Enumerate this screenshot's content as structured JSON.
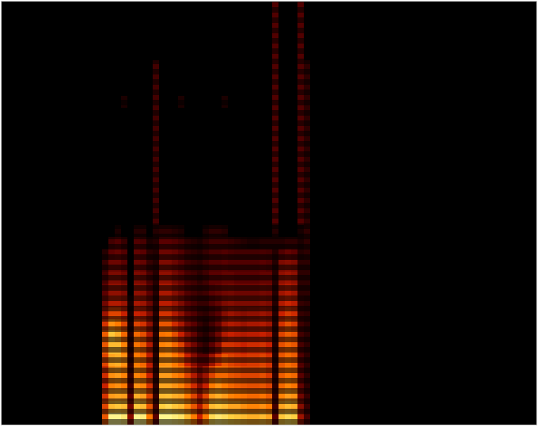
{
  "chart_data": {
    "type": "spectrogram",
    "tick_labels": false,
    "xlim": [
      0,
      85
    ],
    "ylim": [
      0,
      36
    ],
    "zlim": [
      0,
      100
    ],
    "x": [
      16,
      17,
      18,
      19,
      20,
      21,
      22,
      23,
      24,
      25,
      26,
      27,
      28,
      29,
      30,
      31,
      32,
      33,
      34,
      35,
      36,
      37,
      38,
      39,
      40,
      41,
      42,
      43,
      44,
      45,
      46,
      47,
      48
    ],
    "y": [
      0,
      1,
      2,
      3,
      4,
      5,
      6,
      7,
      8,
      9,
      10,
      11,
      12,
      13,
      14,
      15,
      16,
      17,
      18,
      19,
      20,
      21,
      22,
      23,
      24,
      25,
      26,
      27,
      28,
      29,
      30,
      31,
      32,
      33,
      34,
      35
    ],
    "z": [
      [
        60,
        98,
        98,
        95,
        30,
        98,
        96,
        70,
        20,
        98,
        98,
        96,
        94,
        85,
        70,
        45,
        70,
        92,
        95,
        93,
        90,
        88,
        85,
        82,
        82,
        85,
        80,
        20,
        88,
        92,
        90,
        35,
        15
      ],
      [
        55,
        85,
        88,
        85,
        25,
        88,
        85,
        60,
        15,
        90,
        92,
        88,
        85,
        75,
        60,
        40,
        62,
        85,
        88,
        85,
        80,
        80,
        75,
        72,
        72,
        75,
        70,
        15,
        80,
        85,
        82,
        30,
        12
      ],
      [
        50,
        78,
        80,
        78,
        20,
        82,
        78,
        55,
        12,
        85,
        86,
        82,
        80,
        70,
        55,
        35,
        55,
        78,
        82,
        78,
        72,
        70,
        68,
        65,
        65,
        68,
        62,
        12,
        72,
        78,
        75,
        25,
        12
      ],
      [
        45,
        72,
        75,
        70,
        15,
        75,
        72,
        50,
        10,
        80,
        80,
        76,
        72,
        62,
        48,
        30,
        45,
        70,
        75,
        70,
        65,
        62,
        60,
        58,
        58,
        60,
        55,
        10,
        65,
        72,
        68,
        22,
        10
      ],
      [
        48,
        75,
        78,
        72,
        12,
        72,
        68,
        45,
        10,
        78,
        78,
        72,
        68,
        55,
        40,
        25,
        35,
        55,
        65,
        65,
        60,
        58,
        55,
        55,
        55,
        58,
        52,
        10,
        62,
        68,
        65,
        20,
        10
      ],
      [
        55,
        80,
        82,
        75,
        10,
        70,
        65,
        42,
        8,
        75,
        76,
        70,
        62,
        45,
        30,
        20,
        20,
        35,
        50,
        60,
        55,
        52,
        50,
        52,
        52,
        55,
        50,
        8,
        60,
        66,
        62,
        18,
        10
      ],
      [
        60,
        85,
        85,
        72,
        8,
        68,
        62,
        40,
        8,
        72,
        74,
        65,
        55,
        35,
        25,
        15,
        10,
        20,
        30,
        50,
        50,
        48,
        45,
        48,
        48,
        50,
        45,
        8,
        58,
        64,
        60,
        16,
        10
      ],
      [
        62,
        88,
        82,
        65,
        8,
        65,
        58,
        38,
        8,
        68,
        70,
        58,
        45,
        30,
        22,
        12,
        8,
        15,
        25,
        40,
        45,
        42,
        40,
        42,
        42,
        45,
        40,
        8,
        55,
        62,
        58,
        15,
        10
      ],
      [
        50,
        75,
        70,
        55,
        6,
        55,
        50,
        32,
        8,
        60,
        60,
        48,
        38,
        25,
        20,
        12,
        8,
        15,
        22,
        35,
        40,
        38,
        35,
        38,
        38,
        40,
        36,
        8,
        50,
        58,
        52,
        14,
        10
      ],
      [
        35,
        55,
        55,
        45,
        5,
        45,
        42,
        28,
        8,
        50,
        50,
        40,
        32,
        22,
        18,
        12,
        10,
        15,
        20,
        30,
        35,
        32,
        30,
        32,
        32,
        35,
        32,
        8,
        45,
        52,
        48,
        12,
        10
      ],
      [
        25,
        40,
        40,
        35,
        5,
        38,
        35,
        24,
        8,
        42,
        42,
        35,
        28,
        20,
        16,
        12,
        12,
        18,
        22,
        28,
        30,
        28,
        28,
        28,
        28,
        30,
        28,
        8,
        40,
        46,
        42,
        12,
        10
      ],
      [
        20,
        32,
        32,
        28,
        0,
        32,
        30,
        20,
        8,
        38,
        38,
        30,
        25,
        18,
        15,
        12,
        14,
        20,
        22,
        25,
        26,
        24,
        24,
        24,
        24,
        26,
        25,
        8,
        36,
        40,
        36,
        10,
        10
      ],
      [
        15,
        28,
        28,
        24,
        0,
        28,
        26,
        16,
        8,
        32,
        32,
        26,
        22,
        16,
        14,
        10,
        14,
        20,
        20,
        22,
        22,
        20,
        20,
        20,
        20,
        22,
        22,
        8,
        32,
        35,
        32,
        10,
        10
      ],
      [
        12,
        24,
        24,
        20,
        0,
        24,
        22,
        12,
        8,
        28,
        28,
        24,
        20,
        14,
        12,
        10,
        14,
        18,
        18,
        20,
        18,
        18,
        18,
        18,
        18,
        20,
        18,
        8,
        28,
        30,
        28,
        10,
        10
      ],
      [
        8,
        20,
        22,
        18,
        0,
        22,
        20,
        10,
        8,
        24,
        24,
        22,
        18,
        12,
        10,
        8,
        12,
        16,
        16,
        18,
        16,
        15,
        15,
        15,
        15,
        16,
        15,
        8,
        18,
        22,
        20,
        8,
        10
      ],
      [
        0,
        15,
        18,
        12,
        0,
        18,
        16,
        6,
        8,
        20,
        20,
        18,
        15,
        10,
        8,
        6,
        10,
        14,
        14,
        14,
        12,
        10,
        8,
        6,
        6,
        8,
        8,
        8,
        8,
        10,
        10,
        6,
        10
      ],
      [
        0,
        0,
        6,
        0,
        0,
        8,
        8,
        0,
        8,
        10,
        10,
        8,
        6,
        0,
        0,
        0,
        6,
        10,
        10,
        8,
        0,
        0,
        0,
        0,
        0,
        0,
        0,
        8,
        0,
        0,
        0,
        5,
        10
      ],
      [
        0,
        0,
        0,
        0,
        0,
        0,
        0,
        0,
        15,
        0,
        0,
        0,
        0,
        0,
        0,
        0,
        0,
        0,
        0,
        0,
        0,
        0,
        0,
        0,
        0,
        0,
        0,
        18,
        0,
        0,
        0,
        18,
        10
      ],
      [
        0,
        0,
        0,
        0,
        0,
        0,
        0,
        0,
        15,
        0,
        0,
        0,
        0,
        0,
        0,
        0,
        0,
        0,
        0,
        0,
        0,
        0,
        0,
        0,
        0,
        0,
        0,
        18,
        0,
        0,
        0,
        18,
        10
      ],
      [
        0,
        0,
        0,
        0,
        0,
        0,
        0,
        0,
        15,
        0,
        0,
        0,
        0,
        0,
        0,
        0,
        0,
        0,
        0,
        0,
        0,
        0,
        0,
        0,
        0,
        0,
        0,
        18,
        0,
        0,
        0,
        18,
        10
      ],
      [
        0,
        0,
        0,
        0,
        0,
        0,
        0,
        0,
        15,
        0,
        0,
        0,
        0,
        0,
        0,
        0,
        0,
        0,
        0,
        0,
        0,
        0,
        0,
        0,
        0,
        0,
        0,
        18,
        0,
        0,
        0,
        18,
        10
      ],
      [
        0,
        0,
        0,
        0,
        0,
        0,
        0,
        0,
        15,
        0,
        0,
        0,
        0,
        0,
        0,
        0,
        0,
        0,
        0,
        0,
        0,
        0,
        0,
        0,
        0,
        0,
        0,
        18,
        0,
        0,
        0,
        18,
        10
      ],
      [
        0,
        0,
        0,
        0,
        0,
        0,
        0,
        0,
        15,
        0,
        0,
        0,
        0,
        0,
        0,
        0,
        0,
        0,
        0,
        0,
        0,
        0,
        0,
        0,
        0,
        0,
        0,
        18,
        0,
        0,
        0,
        18,
        10
      ],
      [
        0,
        0,
        0,
        0,
        0,
        0,
        0,
        0,
        15,
        0,
        0,
        0,
        0,
        0,
        0,
        0,
        0,
        0,
        0,
        0,
        0,
        0,
        0,
        0,
        0,
        0,
        0,
        18,
        0,
        0,
        0,
        18,
        10
      ],
      [
        0,
        0,
        0,
        0,
        0,
        0,
        0,
        0,
        15,
        0,
        0,
        0,
        0,
        0,
        0,
        0,
        0,
        0,
        0,
        0,
        0,
        0,
        0,
        0,
        0,
        0,
        0,
        18,
        0,
        0,
        0,
        18,
        10
      ],
      [
        0,
        0,
        0,
        0,
        0,
        0,
        0,
        0,
        15,
        0,
        0,
        0,
        0,
        0,
        0,
        0,
        0,
        0,
        0,
        0,
        0,
        0,
        0,
        0,
        0,
        0,
        0,
        18,
        0,
        0,
        0,
        18,
        10
      ],
      [
        0,
        0,
        0,
        0,
        0,
        0,
        0,
        0,
        15,
        0,
        0,
        0,
        0,
        0,
        0,
        0,
        0,
        0,
        0,
        0,
        0,
        0,
        0,
        0,
        0,
        0,
        0,
        18,
        0,
        0,
        0,
        18,
        10
      ],
      [
        0,
        0,
        0,
        6,
        0,
        0,
        0,
        0,
        15,
        0,
        0,
        0,
        6,
        0,
        0,
        0,
        0,
        0,
        0,
        6,
        0,
        0,
        0,
        0,
        0,
        0,
        0,
        18,
        0,
        0,
        0,
        18,
        10
      ],
      [
        0,
        0,
        0,
        0,
        0,
        0,
        0,
        0,
        15,
        0,
        0,
        0,
        0,
        0,
        0,
        0,
        0,
        0,
        0,
        0,
        0,
        0,
        0,
        0,
        0,
        0,
        0,
        18,
        0,
        0,
        0,
        18,
        10
      ],
      [
        0,
        0,
        0,
        0,
        0,
        0,
        0,
        0,
        15,
        0,
        0,
        0,
        0,
        0,
        0,
        0,
        0,
        0,
        0,
        0,
        0,
        0,
        0,
        0,
        0,
        0,
        0,
        18,
        0,
        0,
        0,
        18,
        10
      ],
      [
        0,
        0,
        0,
        0,
        0,
        0,
        0,
        0,
        15,
        0,
        0,
        0,
        0,
        0,
        0,
        0,
        0,
        0,
        0,
        0,
        0,
        0,
        0,
        0,
        0,
        0,
        0,
        18,
        0,
        0,
        0,
        18,
        10
      ],
      [
        0,
        0,
        0,
        0,
        0,
        0,
        0,
        0,
        0,
        0,
        0,
        0,
        0,
        0,
        0,
        0,
        0,
        0,
        0,
        0,
        0,
        0,
        0,
        0,
        0,
        0,
        0,
        18,
        0,
        0,
        0,
        18,
        0
      ],
      [
        0,
        0,
        0,
        0,
        0,
        0,
        0,
        0,
        0,
        0,
        0,
        0,
        0,
        0,
        0,
        0,
        0,
        0,
        0,
        0,
        0,
        0,
        0,
        0,
        0,
        0,
        0,
        18,
        0,
        0,
        0,
        18,
        0
      ],
      [
        0,
        0,
        0,
        0,
        0,
        0,
        0,
        0,
        0,
        0,
        0,
        0,
        0,
        0,
        0,
        0,
        0,
        0,
        0,
        0,
        0,
        0,
        0,
        0,
        0,
        0,
        0,
        18,
        0,
        0,
        0,
        18,
        0
      ],
      [
        0,
        0,
        0,
        0,
        0,
        0,
        0,
        0,
        0,
        0,
        0,
        0,
        0,
        0,
        0,
        0,
        0,
        0,
        0,
        0,
        0,
        0,
        0,
        0,
        0,
        0,
        0,
        18,
        0,
        0,
        0,
        18,
        0
      ],
      [
        0,
        0,
        0,
        0,
        0,
        0,
        0,
        0,
        0,
        0,
        0,
        0,
        0,
        0,
        0,
        0,
        0,
        0,
        0,
        0,
        0,
        0,
        0,
        0,
        0,
        0,
        0,
        18,
        0,
        0,
        0,
        18,
        0
      ]
    ]
  }
}
